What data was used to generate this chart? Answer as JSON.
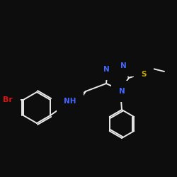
{
  "background_color": "#0d0d0d",
  "bond_color": "#e8e8e8",
  "bond_width": 1.4,
  "atom_colors": {
    "N": "#4466ff",
    "S": "#ccaa00",
    "Br": "#dd1111",
    "C": "#e8e8e8",
    "H": "#4466ff"
  },
  "figsize": [
    2.5,
    2.5
  ],
  "dpi": 100
}
